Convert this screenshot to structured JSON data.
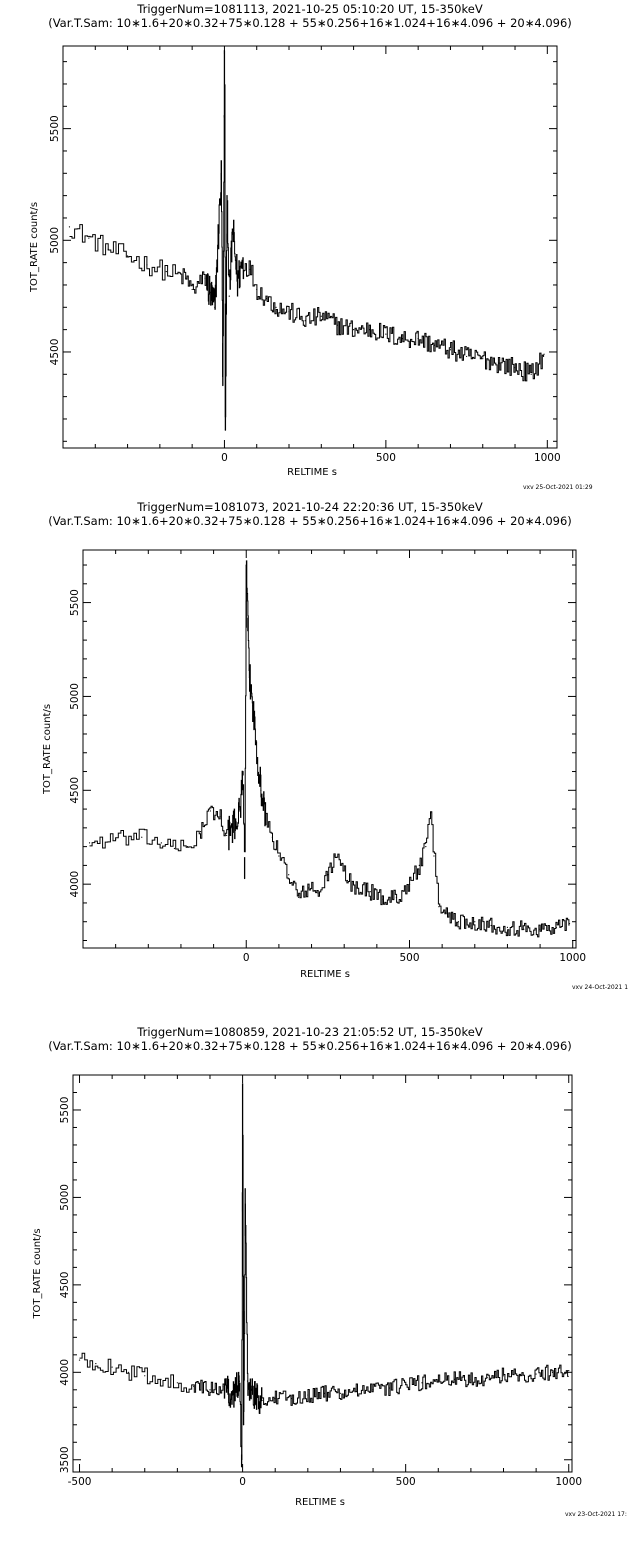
{
  "charts": [
    {
      "title_line1": "TriggerNum=1081113, 2021-10-25 05:10:20 UT, 15-350keV",
      "title_line2": "(Var.T.Sam: 10∗1.6+20∗0.32+75∗0.128   +   55∗0.256+16∗1.024+16∗4.096   +   20∗4.096)",
      "xlabel": "RELTIME   s",
      "ylabel": "TOT_RATE   count/s",
      "stamp": "vxv 25-Oct-2021 01:29"
    },
    {
      "title_line1": "TriggerNum=1081073, 2021-10-24 22:20:36 UT, 15-350keV",
      "title_line2": "(Var.T.Sam: 10∗1.6+20∗0.32+75∗0.128   +   55∗0.256+16∗1.024+16∗4.096   +   20∗4.096)",
      "xlabel": "RELTIME   s",
      "ylabel": "TOT_RATE   count/s",
      "stamp": "vxv 24-Oct-2021 1"
    },
    {
      "title_line1": "TriggerNum=1080859, 2021-10-23 21:05:52 UT, 15-350keV",
      "title_line2": "(Var.T.Sam: 10∗1.6+20∗0.32+75∗0.128   +   55∗0.256+16∗1.024+16∗4.096   +   20∗4.096)",
      "xlabel": "RELTIME   s",
      "ylabel": "TOT_RATE   count/s",
      "stamp": "vxv 23-Oct-2021 17:"
    }
  ],
  "chart_data": [
    {
      "type": "line",
      "style": "step",
      "color": "#000000",
      "xlim": [
        -500,
        1030
      ],
      "ylim": [
        4070,
        5870
      ],
      "xticks": [
        0,
        500,
        1000
      ],
      "yticks": [
        4500,
        5000,
        5500
      ],
      "x": [
        -480,
        -420,
        -360,
        -300,
        -240,
        -180,
        -120,
        -100,
        -60,
        -30,
        -10,
        -5,
        0,
        3,
        8,
        15,
        25,
        40,
        55,
        80,
        100,
        130,
        160,
        200,
        250,
        300,
        350,
        400,
        450,
        500,
        550,
        600,
        650,
        700,
        750,
        800,
        850,
        900,
        950,
        990
      ],
      "y": [
        5060,
        5010,
        4960,
        4930,
        4890,
        4860,
        4830,
        4780,
        4830,
        4700,
        5300,
        4350,
        5850,
        4150,
        5200,
        4750,
        5050,
        4820,
        4900,
        4870,
        4780,
        4740,
        4700,
        4680,
        4640,
        4660,
        4620,
        4600,
        4600,
        4580,
        4560,
        4560,
        4530,
        4510,
        4480,
        4470,
        4450,
        4430,
        4400,
        4490
      ]
    },
    {
      "type": "line",
      "style": "step",
      "color": "#000000",
      "xlim": [
        -500,
        1010
      ],
      "ylim": [
        3660,
        5780
      ],
      "xticks": [
        0,
        500,
        1000
      ],
      "yticks": [
        4000,
        4500,
        5000,
        5500
      ],
      "x": [
        -480,
        -400,
        -320,
        -260,
        -220,
        -180,
        -140,
        -110,
        -80,
        -60,
        -40,
        -20,
        -10,
        -5,
        0,
        5,
        10,
        20,
        30,
        45,
        60,
        80,
        100,
        130,
        160,
        190,
        220,
        250,
        270,
        290,
        310,
        340,
        380,
        420,
        460,
        500,
        530,
        550,
        565,
        575,
        590,
        610,
        650,
        700,
        750,
        800,
        850,
        900,
        950,
        990
      ],
      "y": [
        4220,
        4240,
        4250,
        4220,
        4190,
        4200,
        4280,
        4390,
        4360,
        4260,
        4300,
        4390,
        4600,
        4030,
        5700,
        5350,
        5100,
        4950,
        4750,
        4500,
        4350,
        4250,
        4150,
        4050,
        3930,
        3980,
        3950,
        4050,
        4150,
        4100,
        4020,
        3980,
        3960,
        3920,
        3930,
        4000,
        4100,
        4200,
        4380,
        4150,
        3880,
        3850,
        3800,
        3800,
        3780,
        3770,
        3760,
        3760,
        3770,
        3790
      ]
    },
    {
      "type": "line",
      "style": "step",
      "color": "#000000",
      "xlim": [
        -520,
        1010
      ],
      "ylim": [
        3430,
        5700
      ],
      "xticks": [
        -500,
        0,
        500,
        1000
      ],
      "yticks": [
        3500,
        4000,
        4500,
        5000,
        5500
      ],
      "x": [
        -500,
        -450,
        -400,
        -350,
        -300,
        -250,
        -200,
        -150,
        -100,
        -60,
        -30,
        -10,
        -3,
        0,
        3,
        8,
        15,
        25,
        40,
        60,
        100,
        150,
        200,
        250,
        300,
        350,
        400,
        450,
        500,
        550,
        600,
        650,
        700,
        750,
        800,
        850,
        900,
        950,
        1000
      ],
      "y": [
        4070,
        4050,
        4030,
        4000,
        3980,
        3960,
        3940,
        3920,
        3900,
        3920,
        3870,
        3950,
        3460,
        5650,
        3700,
        5050,
        3950,
        3900,
        3870,
        3840,
        3850,
        3850,
        3870,
        3880,
        3880,
        3890,
        3900,
        3910,
        3930,
        3940,
        3950,
        3960,
        3960,
        3970,
        3980,
        3980,
        3990,
        4000,
        4010
      ]
    }
  ]
}
